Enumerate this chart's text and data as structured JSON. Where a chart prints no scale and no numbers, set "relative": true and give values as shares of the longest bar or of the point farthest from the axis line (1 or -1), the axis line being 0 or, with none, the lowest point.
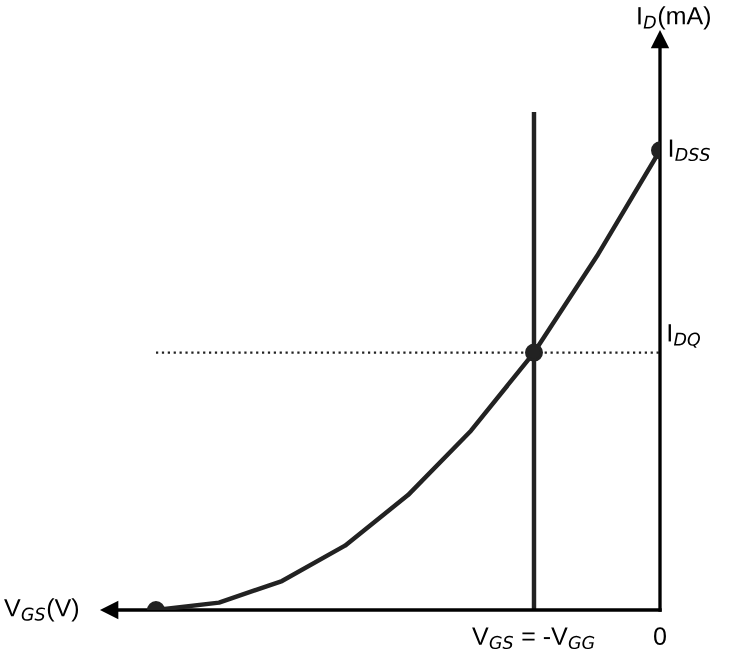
{
  "chart_data": {
    "type": "line",
    "relative": true,
    "xlabel": "V$_{GS}$(V)",
    "ylabel": "I$_{D}$(mA)",
    "categories": [
      null,
      null,
      null,
      null,
      null,
      null,
      "V$_{GS}$ = -V$_{GG}$",
      null,
      "0"
    ],
    "series": [
      {
        "color": "#222222",
        "values": [
          0,
          0.016,
          0.063,
          0.14,
          0.25,
          0.39,
          0.56,
          0.77,
          1
        ],
        "marker": "none"
      },
      {
        "type": "scatter",
        "color": "#222222",
        "values": [
          0,
          null,
          null,
          null,
          null,
          null,
          0.56,
          null,
          1
        ],
        "marker": "circle"
      }
    ],
    "ref_lines": [
      {
        "axis": "x",
        "value": "V$_{GS}$ = -V$_{GG}$",
        "color": "#222222",
        "line_style": "solid"
      },
      {
        "axis": "y",
        "value": 0.56,
        "label": "I$_{DQ}$",
        "color": "#222222",
        "line_style": "dotted"
      }
    ],
    "annotations": [
      {
        "text": "I$_{DSS}$",
        "x": "0",
        "y": 1
      }
    ],
    "grid": false
  }
}
